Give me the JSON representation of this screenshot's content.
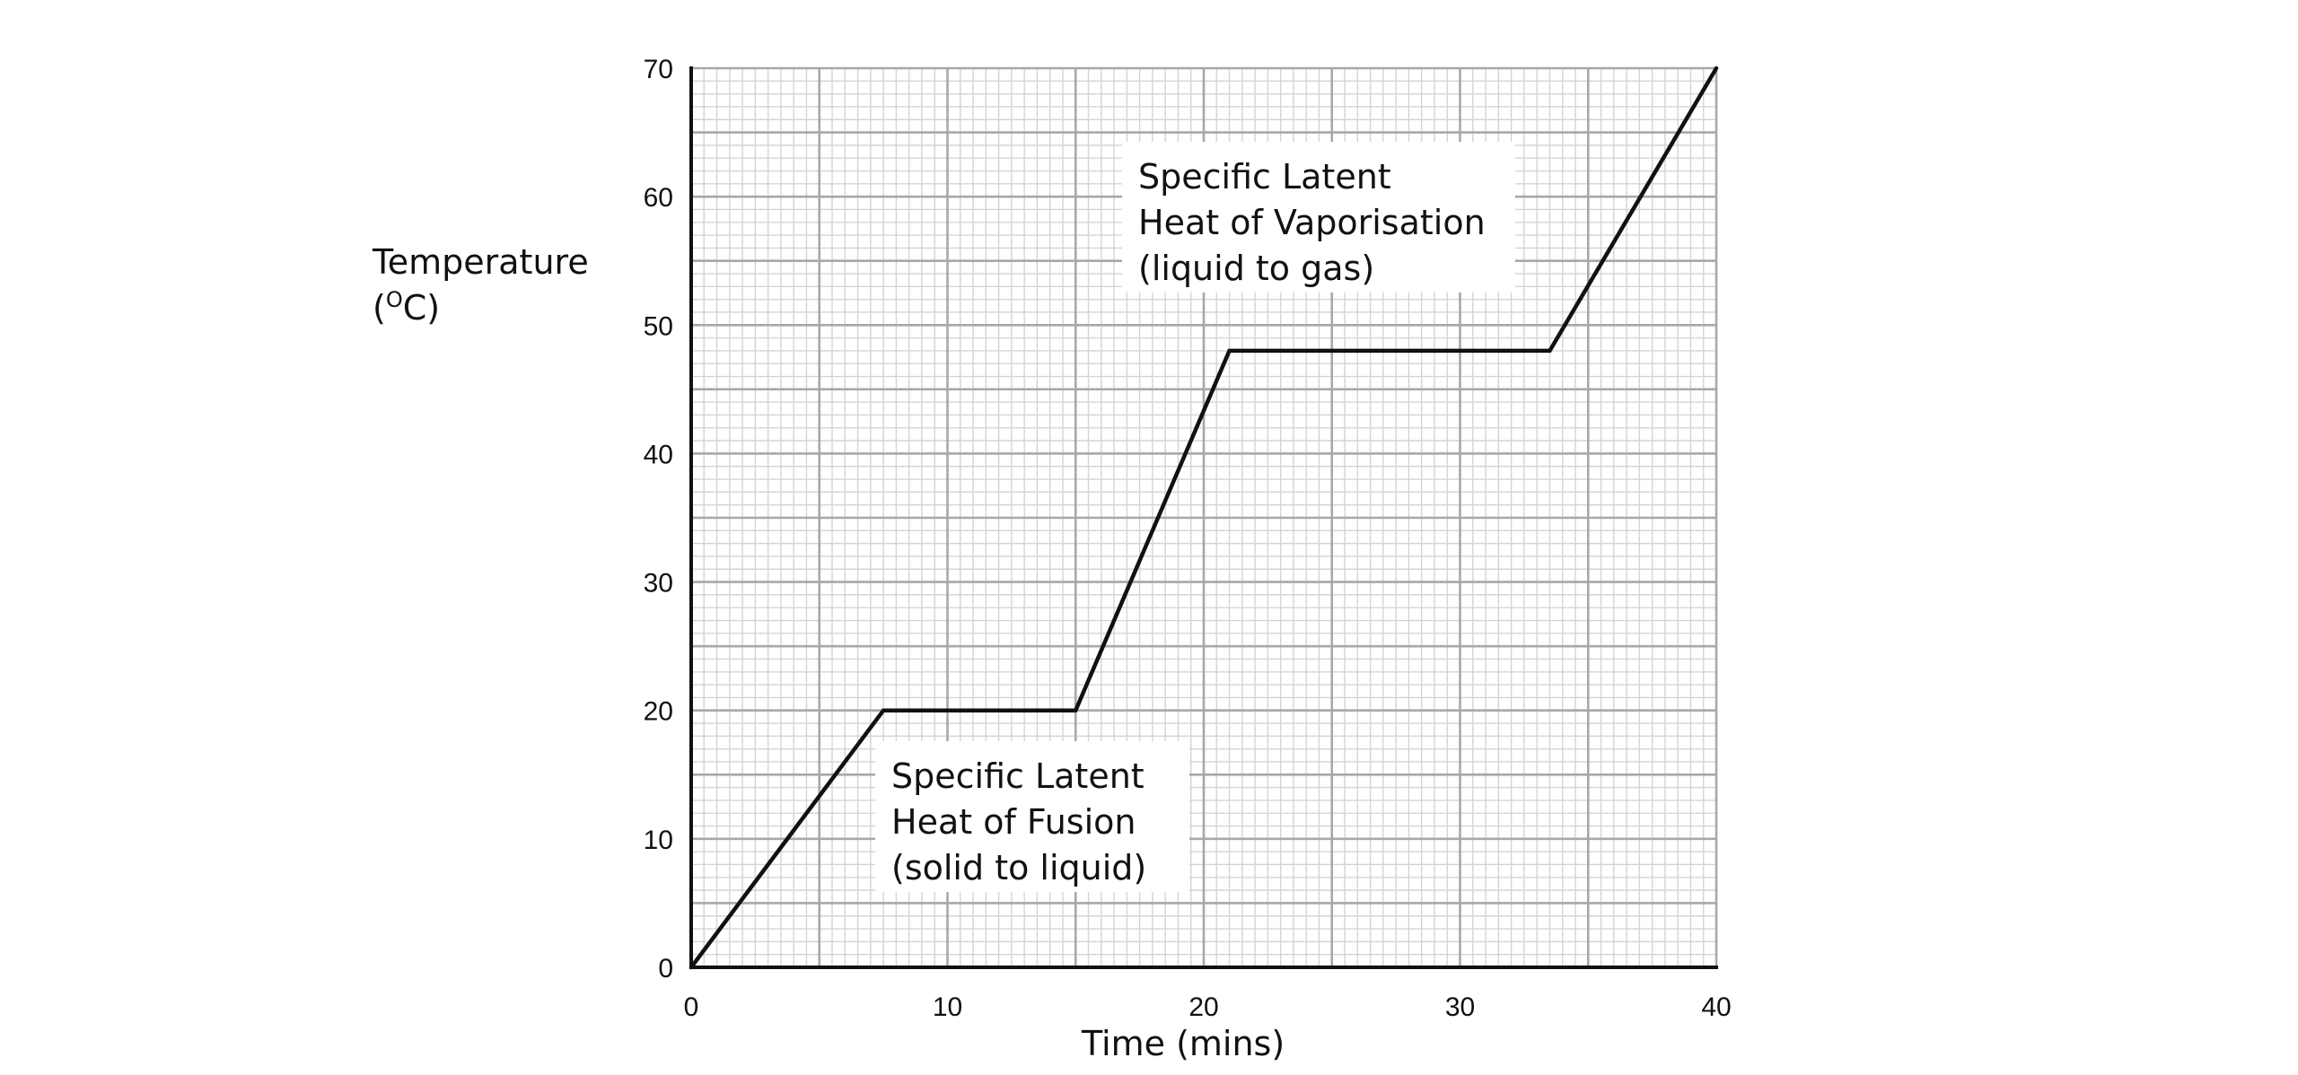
{
  "chart_data": {
    "type": "line",
    "title": "",
    "xlabel": "Time (mins)",
    "ylabel_main": "Temperature",
    "ylabel_unit_open": "(",
    "ylabel_unit_sup": "O",
    "ylabel_unit_rest": "C)",
    "xlim": [
      0,
      40
    ],
    "ylim": [
      0,
      70
    ],
    "x_ticks": [
      0,
      10,
      20,
      30,
      40
    ],
    "y_ticks": [
      0,
      10,
      20,
      30,
      40,
      50,
      60,
      70
    ],
    "x_tick_labels": [
      "0",
      "10",
      "20",
      "30",
      "40"
    ],
    "y_tick_labels": [
      "0",
      "10",
      "20",
      "30",
      "40",
      "50",
      "60",
      "70"
    ],
    "grid": true,
    "series": [
      {
        "x": [
          0,
          7.5,
          15,
          21,
          33.5,
          40
        ],
        "y": [
          0,
          20,
          20,
          48,
          48,
          70
        ]
      }
    ],
    "annotations": {
      "vaporisation": {
        "lines": [
          "Specific Latent",
          "Heat of Vaporisation",
          "(liquid to gas)"
        ]
      },
      "fusion": {
        "lines": [
          "Specific Latent",
          "Heat of Fusion",
          "(solid to liquid)"
        ]
      }
    }
  },
  "colors": {
    "line": "#111111",
    "grid_major": "#a8a8a8",
    "grid_minor": "#d4d4d4",
    "axis": "#111111",
    "background": "#ffffff"
  }
}
